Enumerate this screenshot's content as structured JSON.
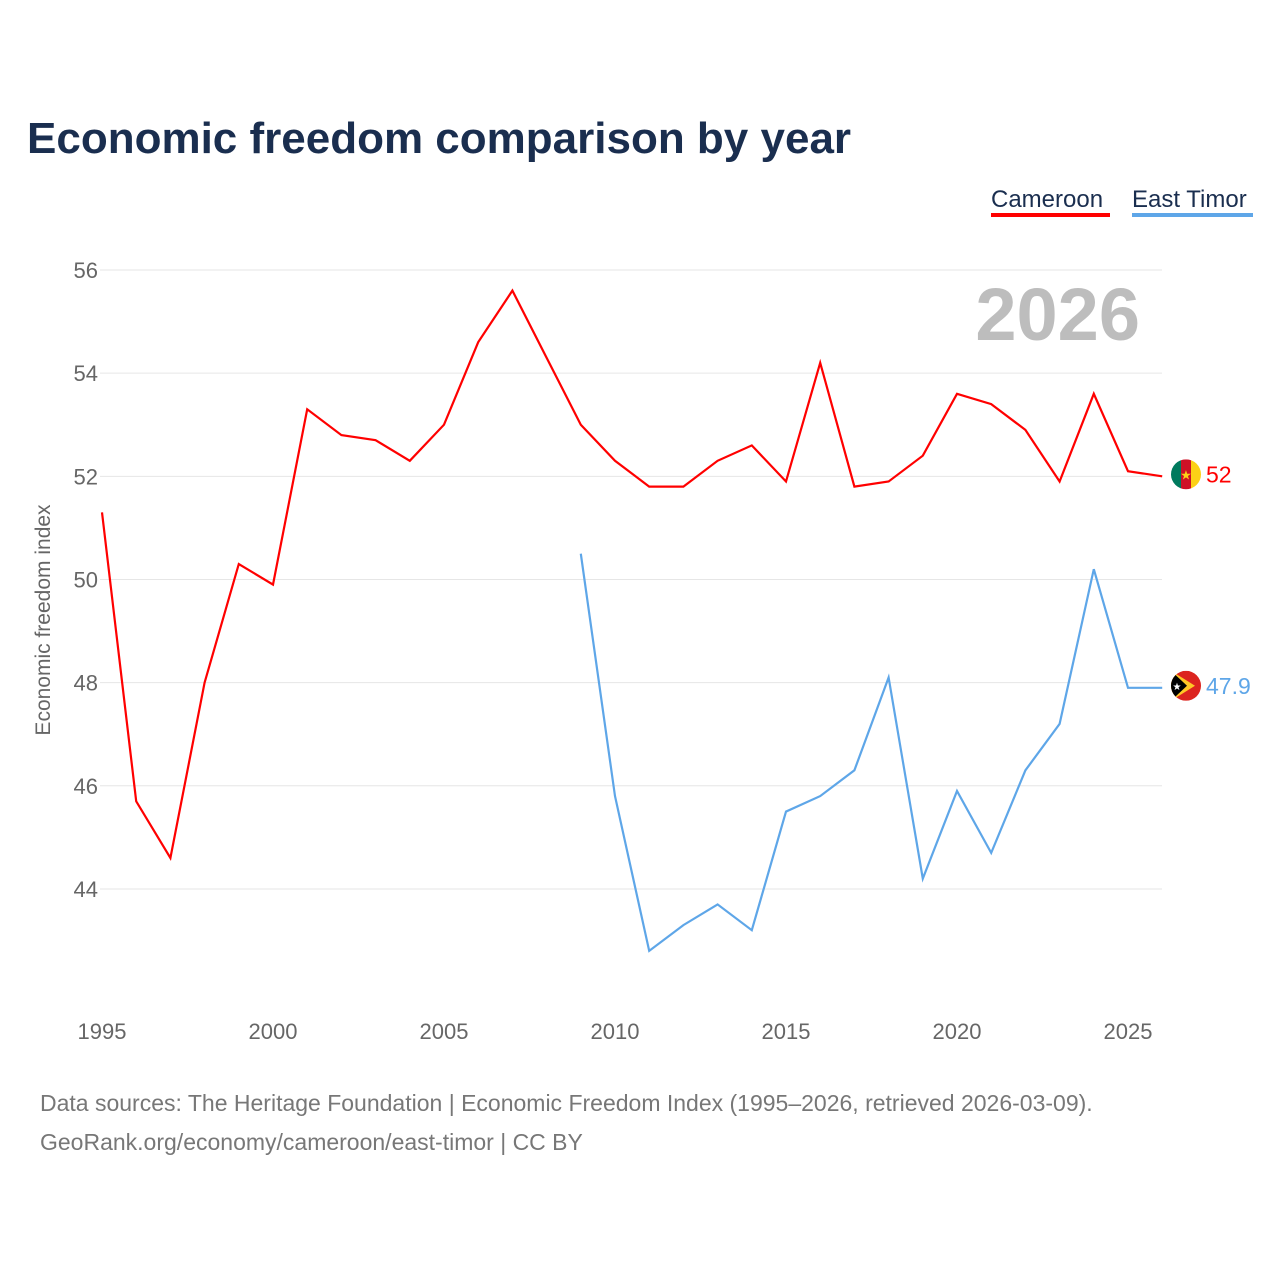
{
  "chart_data": {
    "type": "line",
    "title": "Economic freedom comparison by year",
    "ylabel": "Economic freedom index",
    "xlabel": "",
    "ylim": [
      42.3,
      56
    ],
    "xlim": [
      1995,
      2026
    ],
    "yticks": [
      44,
      46,
      48,
      50,
      52,
      54,
      56
    ],
    "xticks": [
      1995,
      2000,
      2005,
      2010,
      2015,
      2020,
      2025
    ],
    "grid": true,
    "legend_placement": "top-right",
    "year_watermark": "2026",
    "series": [
      {
        "name": "Cameroon",
        "color": "#ff0000",
        "end_label": "52",
        "x": [
          1995,
          1996,
          1997,
          1998,
          1999,
          2000,
          2001,
          2002,
          2003,
          2004,
          2005,
          2006,
          2007,
          2008,
          2009,
          2010,
          2011,
          2012,
          2013,
          2014,
          2015,
          2016,
          2017,
          2018,
          2019,
          2020,
          2021,
          2022,
          2023,
          2024,
          2025,
          2026
        ],
        "values": [
          51.3,
          45.7,
          44.6,
          48.0,
          50.3,
          49.9,
          53.3,
          52.8,
          52.7,
          52.3,
          53.0,
          54.6,
          55.6,
          54.3,
          53.0,
          52.3,
          51.8,
          51.8,
          52.3,
          52.6,
          51.9,
          54.2,
          51.8,
          51.9,
          52.4,
          53.6,
          53.4,
          52.9,
          51.9,
          53.6,
          52.1,
          52.0
        ]
      },
      {
        "name": "East Timor",
        "color": "#5ea6e8",
        "end_label": "47.9",
        "x": [
          2009,
          2010,
          2011,
          2012,
          2013,
          2014,
          2015,
          2016,
          2017,
          2018,
          2019,
          2020,
          2021,
          2022,
          2023,
          2024,
          2025,
          2026
        ],
        "values": [
          50.5,
          45.8,
          42.8,
          43.3,
          43.7,
          43.2,
          45.5,
          45.8,
          46.3,
          48.1,
          44.2,
          45.9,
          44.7,
          46.3,
          47.2,
          50.2,
          47.9,
          47.9
        ]
      }
    ]
  },
  "footer": {
    "line1": "Data sources: The Heritage Foundation | Economic Freedom Index (1995–2026, retrieved 2026-03-09).",
    "line2": "GeoRank.org/economy/cameroon/east-timor | CC BY"
  }
}
